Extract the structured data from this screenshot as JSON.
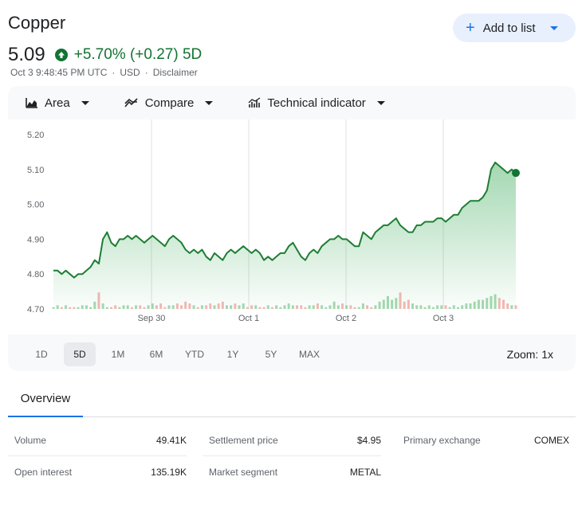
{
  "header": {
    "title": "Copper",
    "price": "5.09",
    "change": "+5.70% (+0.27) 5D",
    "timestamp": "Oct 3 9:48:45 PM UTC",
    "currency": "USD",
    "disclaimer": "Disclaimer",
    "add_label": "Add to list"
  },
  "toolbar": {
    "area_label": "Area",
    "compare_label": "Compare",
    "indicator_label": "Technical indicator"
  },
  "ranges": [
    "1D",
    "5D",
    "1M",
    "6M",
    "YTD",
    "1Y",
    "5Y",
    "MAX"
  ],
  "active_range": "5D",
  "zoom_label": "Zoom: 1x",
  "tabs": {
    "overview": "Overview"
  },
  "stats": {
    "volume_label": "Volume",
    "volume": "49.41K",
    "settlement_label": "Settlement price",
    "settlement": "$4.95",
    "exchange_label": "Primary exchange",
    "exchange": "COMEX",
    "oi_label": "Open interest",
    "oi": "135.19K",
    "segment_label": "Market segment",
    "segment": "METAL"
  },
  "colors": {
    "up": "#137333",
    "line": "#1e7e34",
    "accent": "#1a73e8"
  },
  "chart_data": {
    "type": "area",
    "y_ticks": [
      "5.20",
      "5.10",
      "5.00",
      "4.90",
      "4.80",
      "4.70"
    ],
    "ylim": [
      4.7,
      5.2
    ],
    "x_ticks": [
      "Sep 30",
      "Oct 1",
      "Oct 2",
      "Oct 3"
    ],
    "series": [
      {
        "values": [
          4.81,
          4.81,
          4.8,
          4.81,
          4.8,
          4.79,
          4.8,
          4.8,
          4.81,
          4.82,
          4.84,
          4.83,
          4.9,
          4.92,
          4.89,
          4.88,
          4.9,
          4.9,
          4.91,
          4.9,
          4.91,
          4.9,
          4.89,
          4.9,
          4.91,
          4.9,
          4.89,
          4.88,
          4.9,
          4.91,
          4.9,
          4.89,
          4.87,
          4.86,
          4.87,
          4.86,
          4.87,
          4.85,
          4.84,
          4.86,
          4.85,
          4.84,
          4.86,
          4.87,
          4.86,
          4.87,
          4.88,
          4.87,
          4.86,
          4.87,
          4.86,
          4.84,
          4.85,
          4.84,
          4.85,
          4.86,
          4.86,
          4.88,
          4.89,
          4.87,
          4.85,
          4.84,
          4.86,
          4.87,
          4.86,
          4.88,
          4.89,
          4.9,
          4.9,
          4.91,
          4.9,
          4.9,
          4.89,
          4.88,
          4.88,
          4.92,
          4.91,
          4.9,
          4.92,
          4.93,
          4.94,
          4.94,
          4.95,
          4.96,
          4.94,
          4.93,
          4.92,
          4.92,
          4.94,
          4.94,
          4.95,
          4.95,
          4.95,
          4.96,
          4.96,
          4.95,
          4.96,
          4.97,
          4.97,
          4.99,
          5.0,
          5.01,
          5.01,
          5.01,
          5.02,
          5.04,
          5.1,
          5.12,
          5.11,
          5.1,
          5.09,
          5.1,
          5.09
        ],
        "volume": [
          1,
          2,
          1,
          2,
          1,
          1,
          1,
          2,
          2,
          1,
          4,
          9,
          3,
          1,
          1,
          2,
          1,
          2,
          2,
          1,
          2,
          2,
          1,
          2,
          3,
          2,
          3,
          1,
          2,
          2,
          3,
          2,
          4,
          3,
          2,
          1,
          2,
          2,
          3,
          2,
          3,
          4,
          2,
          2,
          3,
          2,
          3,
          1,
          2,
          2,
          1,
          1,
          2,
          1,
          2,
          1,
          2,
          3,
          2,
          2,
          2,
          1,
          2,
          2,
          3,
          2,
          1,
          2,
          4,
          2,
          3,
          2,
          2,
          1,
          1,
          3,
          2,
          1,
          2,
          4,
          5,
          7,
          5,
          6,
          9,
          4,
          5,
          3,
          2,
          2,
          1,
          2,
          1,
          2,
          2,
          2,
          1,
          2,
          1,
          2,
          3,
          3,
          4,
          5,
          5,
          6,
          7,
          8,
          6,
          5,
          3,
          2,
          2
        ]
      }
    ]
  }
}
